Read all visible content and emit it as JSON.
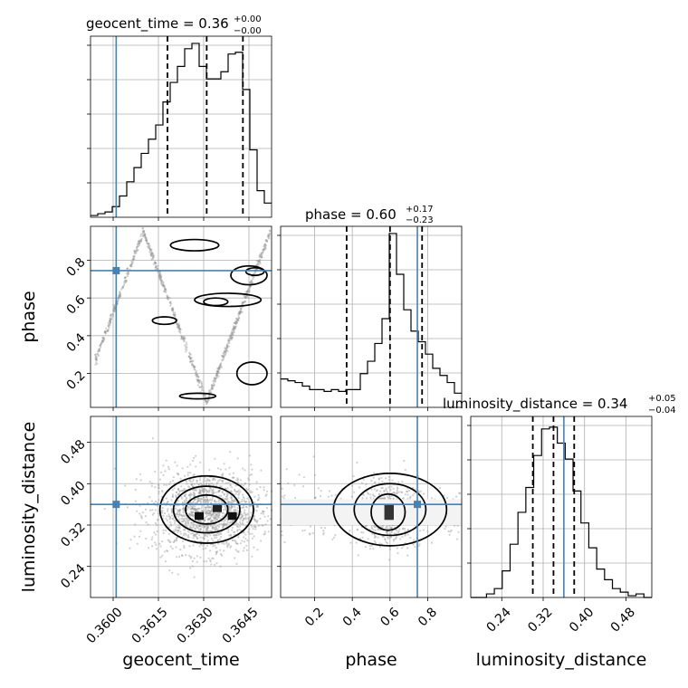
{
  "chart_data": {
    "type": "corner",
    "parameters": [
      "geocent_time",
      "phase",
      "luminosity_distance"
    ],
    "titles": [
      {
        "param": "geocent_time",
        "text": "geocent_time = 0.36",
        "median": "0.36",
        "plus": "+0.00",
        "minus": "−0.00"
      },
      {
        "param": "phase",
        "text": "phase = 0.60",
        "median": "0.60",
        "plus": "+0.17",
        "minus": "−0.23"
      },
      {
        "param": "luminosity_distance",
        "text": "luminosity_distance = 0.34",
        "median": "0.34",
        "plus": "+0.05",
        "minus": "−0.04"
      }
    ],
    "axes": {
      "geocent_time": {
        "label": "geocent_time",
        "range": [
          0.35925,
          0.36525
        ],
        "ticks": [
          0.36,
          0.3615,
          0.363,
          0.3645
        ],
        "tick_labels": [
          "0.3600",
          "0.3615",
          "0.3630",
          "0.3645"
        ]
      },
      "phase": {
        "label": "phase",
        "range": [
          0.02,
          0.98
        ],
        "ticks": [
          0.2,
          0.4,
          0.6,
          0.8
        ],
        "tick_labels": [
          "0.2",
          "0.4",
          "0.6",
          "0.8"
        ]
      },
      "luminosity_distance": {
        "label": "luminosity_distance",
        "range": [
          0.18,
          0.53
        ],
        "ticks": [
          0.24,
          0.32,
          0.4,
          0.48
        ],
        "tick_labels": [
          "0.24",
          "0.32",
          "0.40",
          "0.48"
        ]
      }
    },
    "truths": {
      "geocent_time": 0.3601,
      "phase": 0.745,
      "luminosity_distance": 0.36
    },
    "quantiles": {
      "geocent_time": [
        0.3618,
        0.3631,
        0.3643
      ],
      "phase": [
        0.37,
        0.6,
        0.77
      ],
      "luminosity_distance": [
        0.3,
        0.34,
        0.38
      ]
    },
    "histograms": {
      "geocent_time": [
        0.01,
        0.02,
        0.03,
        0.06,
        0.12,
        0.2,
        0.28,
        0.36,
        0.44,
        0.52,
        0.65,
        0.76,
        0.85,
        0.95,
        0.98,
        0.85,
        0.78,
        0.78,
        0.82,
        0.92,
        0.93,
        0.72,
        0.38,
        0.15,
        0.08
      ],
      "phase": [
        0.16,
        0.15,
        0.14,
        0.12,
        0.1,
        0.1,
        0.09,
        0.1,
        0.09,
        0.1,
        0.1,
        0.19,
        0.26,
        0.36,
        0.5,
        0.98,
        0.75,
        0.55,
        0.43,
        0.37,
        0.3,
        0.22,
        0.18,
        0.14,
        0.08
      ],
      "luminosity_distance": [
        0.0,
        0.0,
        0.02,
        0.05,
        0.15,
        0.3,
        0.48,
        0.62,
        0.8,
        0.95,
        0.96,
        0.87,
        0.78,
        0.6,
        0.42,
        0.28,
        0.16,
        0.1,
        0.05,
        0.03,
        0.01,
        0.02,
        0.0
      ]
    },
    "legend": "none",
    "grid": true
  }
}
